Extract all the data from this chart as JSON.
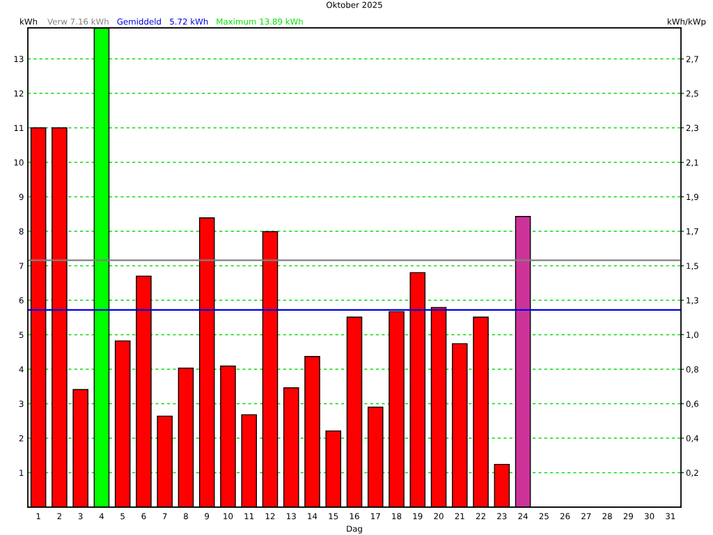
{
  "chart_data": {
    "type": "bar",
    "title": "Oktober 2025",
    "xlabel": "Dag",
    "ylabel": "kWh",
    "y2label": "kWh/kWp",
    "categories": [
      "1",
      "2",
      "3",
      "4",
      "5",
      "6",
      "7",
      "8",
      "9",
      "10",
      "11",
      "12",
      "13",
      "14",
      "15",
      "16",
      "17",
      "18",
      "19",
      "20",
      "21",
      "22",
      "23",
      "24",
      "25",
      "26",
      "27",
      "28",
      "29",
      "30",
      "31"
    ],
    "values": [
      11.0,
      11.0,
      3.41,
      13.89,
      4.82,
      6.7,
      2.64,
      4.03,
      8.39,
      4.09,
      2.68,
      7.99,
      3.46,
      4.37,
      2.21,
      5.51,
      2.9,
      5.67,
      6.8,
      5.79,
      4.74,
      5.51,
      1.24,
      8.43,
      null,
      null,
      null,
      null,
      null,
      null,
      null
    ],
    "colors": [
      "#ff0000",
      "#ff0000",
      "#ff0000",
      "#00ff00",
      "#ff0000",
      "#ff0000",
      "#ff0000",
      "#ff0000",
      "#ff0000",
      "#ff0000",
      "#ff0000",
      "#ff0000",
      "#ff0000",
      "#ff0000",
      "#ff0000",
      "#ff0000",
      "#ff0000",
      "#ff0000",
      "#ff0000",
      "#ff0000",
      "#ff0000",
      "#ff0000",
      "#ff0000",
      "#cc3399",
      null,
      null,
      null,
      null,
      null,
      null,
      null
    ],
    "ylim": [
      0,
      13.9
    ],
    "yticks": [
      1,
      2,
      3,
      4,
      5,
      6,
      7,
      8,
      9,
      10,
      11,
      12,
      13
    ],
    "y2lim": [
      0,
      2.896
    ],
    "y2ticks": [
      {
        "value": 0.208,
        "label": "0,2"
      },
      {
        "value": 0.417,
        "label": "0,4"
      },
      {
        "value": 0.625,
        "label": "0,6"
      },
      {
        "value": 0.833,
        "label": "0,8"
      },
      {
        "value": 1.042,
        "label": "1,0"
      },
      {
        "value": 1.25,
        "label": "1,3"
      },
      {
        "value": 1.458,
        "label": "1,5"
      },
      {
        "value": 1.667,
        "label": "1,7"
      },
      {
        "value": 1.875,
        "label": "1,9"
      },
      {
        "value": 2.083,
        "label": "2,1"
      },
      {
        "value": 2.292,
        "label": "2,3"
      },
      {
        "value": 2.5,
        "label": "2,5"
      },
      {
        "value": 2.708,
        "label": "2,7"
      }
    ],
    "ref_lines": [
      {
        "axis": "y",
        "value": 7.16,
        "label": "Verw 7.16 kWh",
        "color": "#808080"
      },
      {
        "axis": "y",
        "value": 5.72,
        "label": "Gemiddeld   5.72 kWh",
        "color": "#0000dd"
      }
    ],
    "annotations": [
      "Maximum 13.89 kWh"
    ],
    "grid": "y"
  }
}
